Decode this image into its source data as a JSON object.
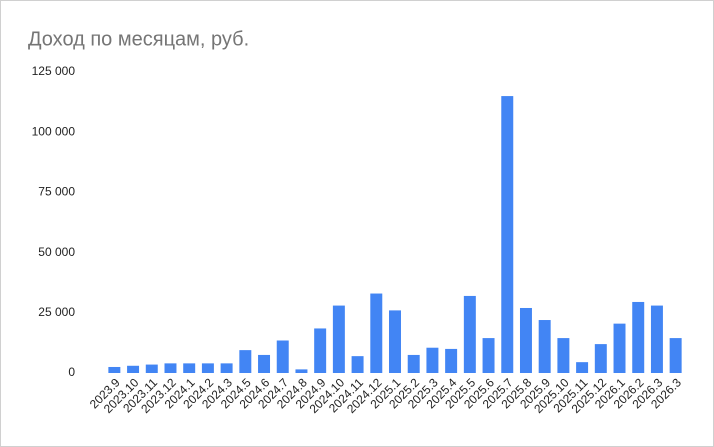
{
  "chart_data": {
    "type": "bar",
    "title": "Доход по месяцам, руб.",
    "categories": [
      "2023.9",
      "2023.10",
      "2023.11",
      "2023.12",
      "2024.1",
      "2024.2",
      "2024.3",
      "2024.5",
      "2024.6",
      "2024.7",
      "2024.8",
      "2024.9",
      "2024.10",
      "2024.11",
      "2024.12",
      "2025.1",
      "2025.2",
      "2025.3",
      "2025.4",
      "2025.5",
      "2025.6",
      "2025.7",
      "2025.8",
      "2025.9",
      "2025.10",
      "2025.11",
      "2025.12",
      "2026.1",
      "2026.2",
      "2026.3",
      "2026.3"
    ],
    "values": [
      2500,
      3000,
      3500,
      4000,
      4000,
      4000,
      4000,
      9500,
      7500,
      13500,
      1500,
      18500,
      28000,
      7000,
      33000,
      26000,
      7500,
      10500,
      10000,
      32000,
      14500,
      115000,
      27000,
      22000,
      14500,
      4500,
      12000,
      20500,
      29500,
      28000,
      14500
    ],
    "color": "#4285f4",
    "ylim": [
      0,
      125000
    ],
    "yticks": [
      0,
      {
        "value": 25000,
        "label": "25 000"
      },
      {
        "value": 50000,
        "label": "50 000"
      },
      {
        "value": 75000,
        "label": "75 000"
      },
      {
        "value": 100000,
        "label": "100 000"
      },
      {
        "value": 125000,
        "label": "125 000"
      }
    ],
    "grid": false
  }
}
